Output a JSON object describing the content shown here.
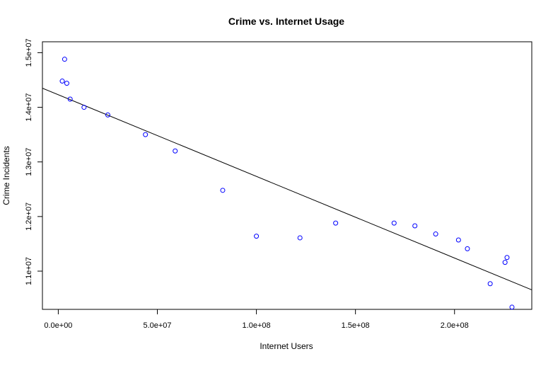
{
  "chart_data": {
    "type": "scatter",
    "title": "Crime vs. Internet Usage",
    "xlabel": "Internet Users",
    "ylabel": "Crime Incidents",
    "xlim": [
      -8000000,
      239000000
    ],
    "ylim": [
      10300000,
      15200000
    ],
    "x_ticks": [
      {
        "value": 0,
        "label": "0.0e+00"
      },
      {
        "value": 50000000,
        "label": "5.0e+07"
      },
      {
        "value": 100000000,
        "label": "1.0e+08"
      },
      {
        "value": 150000000,
        "label": "1.5e+08"
      },
      {
        "value": 200000000,
        "label": "2.0e+08"
      }
    ],
    "y_ticks": [
      {
        "value": 11000000,
        "label": "1.1e+07"
      },
      {
        "value": 12000000,
        "label": "1.2e+07"
      },
      {
        "value": 13000000,
        "label": "1.3e+07"
      },
      {
        "value": 14000000,
        "label": "1.4e+07"
      },
      {
        "value": 15000000,
        "label": "1.5e+07"
      }
    ],
    "points": [
      {
        "x": 2000000,
        "y": 14480000
      },
      {
        "x": 3200000,
        "y": 14880000
      },
      {
        "x": 4300000,
        "y": 14440000
      },
      {
        "x": 6000000,
        "y": 14150000
      },
      {
        "x": 13000000,
        "y": 14000000
      },
      {
        "x": 25000000,
        "y": 13860000
      },
      {
        "x": 44000000,
        "y": 13500000
      },
      {
        "x": 59000000,
        "y": 13200000
      },
      {
        "x": 83000000,
        "y": 12480000
      },
      {
        "x": 100000000,
        "y": 11640000
      },
      {
        "x": 122000000,
        "y": 11610000
      },
      {
        "x": 140000000,
        "y": 11880000
      },
      {
        "x": 169500000,
        "y": 11880000
      },
      {
        "x": 180000000,
        "y": 11830000
      },
      {
        "x": 190500000,
        "y": 11680000
      },
      {
        "x": 202000000,
        "y": 11570000
      },
      {
        "x": 206500000,
        "y": 11410000
      },
      {
        "x": 218000000,
        "y": 10770000
      },
      {
        "x": 225500000,
        "y": 11160000
      },
      {
        "x": 226500000,
        "y": 11250000
      },
      {
        "x": 229000000,
        "y": 10340000
      }
    ],
    "fit_line": {
      "intercept": 14230000,
      "slope": -0.01495
    },
    "point_color": "#0000ff",
    "line_color": "#000000",
    "grid": false,
    "legend": "none"
  }
}
